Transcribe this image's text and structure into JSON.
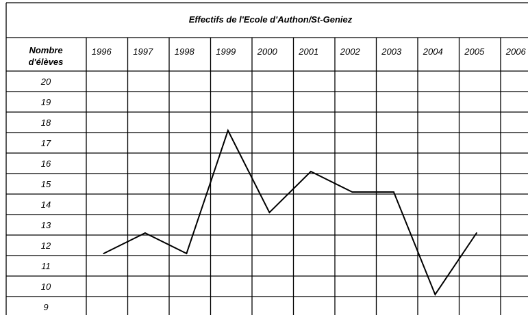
{
  "chart_data": {
    "type": "line",
    "title": "Effectifs de l'Ecole d'Authon/St-Geniez",
    "header_line1": "Nombre",
    "header_line2": "d'élèves",
    "categories": [
      "1996",
      "1997",
      "1998",
      "1999",
      "2000",
      "2001",
      "2002",
      "2003",
      "2004",
      "2005",
      "2006"
    ],
    "y_labels": [
      "20",
      "19",
      "18",
      "17",
      "16",
      "15",
      "14",
      "13",
      "12",
      "11",
      "10",
      "9"
    ],
    "series": [
      {
        "values": [
          {
            "x": "1996",
            "y": 11.6
          },
          {
            "x": "1997",
            "y": 12.6
          },
          {
            "x": "1998",
            "y": 11.6
          },
          {
            "x": "1999",
            "y": 17.6
          },
          {
            "x": "2000",
            "y": 13.6
          },
          {
            "x": "2001",
            "y": 15.6
          },
          {
            "x": "2002",
            "y": 14.6
          },
          {
            "x": "2003",
            "y": 14.6
          },
          {
            "x": "2004",
            "y": 9.6
          },
          {
            "x": "2005",
            "y": 12.6
          }
        ]
      }
    ],
    "grid": true,
    "line_color": "#000000"
  }
}
